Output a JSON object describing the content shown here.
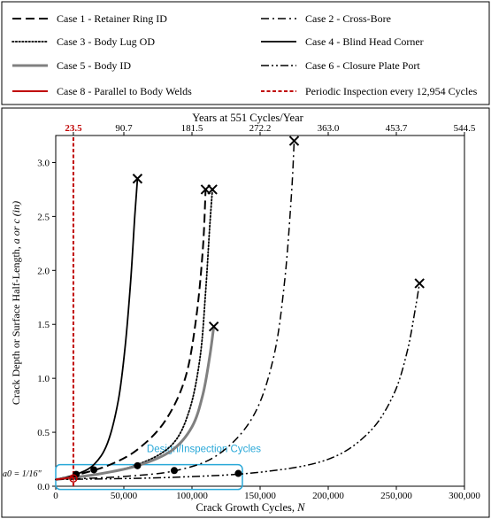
{
  "chart_data": {
    "type": "line",
    "xlabel_main": "Crack Growth Cycles,",
    "xlabel_var": "N",
    "ylabel_main": "Crack Depth or Surface Half-Length,",
    "ylabel_var": "a or c (in)",
    "top_axis_label": "Years at 551 Cycles/Year",
    "xlim": [
      0,
      300000
    ],
    "ylim": [
      0,
      3.25
    ],
    "x_ticks": [
      0,
      50000,
      100000,
      150000,
      200000,
      250000,
      300000
    ],
    "x_tick_labels": [
      "0",
      "50,000",
      "100,000",
      "150,000",
      "200,000",
      "250,000",
      "300,000"
    ],
    "y_ticks": [
      0.0,
      0.5,
      1.0,
      1.5,
      2.0,
      2.5,
      3.0
    ],
    "y_tick_labels": [
      "0.0",
      "0.5",
      "1.0",
      "1.5",
      "2.0",
      "2.5",
      "3.0"
    ],
    "top_ticks_x": [
      12954,
      50000,
      100000,
      150000,
      200000,
      250000,
      300000
    ],
    "top_tick_labels": [
      "23.5",
      "90.7",
      "181.5",
      "272.2",
      "363.0",
      "453.7",
      "544.5"
    ],
    "top_first_label_color": "#c00000",
    "a0_label": "a0 = 1/16\"",
    "a0_value": 0.0625,
    "inspection_interval_cycles": 12954,
    "design_box_label": "Design/Inspection Cycles",
    "design_box_color": "#29a8d8",
    "series": [
      {
        "name": "Case 1 - Retainer Ring ID",
        "dash": "long",
        "color": "#000000",
        "width": 2,
        "x": [
          0,
          20000,
          40000,
          60000,
          80000,
          95000,
          103000,
          108000,
          110000
        ],
        "y": [
          0.0625,
          0.12,
          0.2,
          0.34,
          0.6,
          1.0,
          1.55,
          2.2,
          2.75
        ],
        "end_marker": true,
        "dots": [
          28000
        ]
      },
      {
        "name": "Case 2 - Cross-Bore",
        "dash": "dashdot",
        "color": "#000000",
        "width": 1.5,
        "x": [
          0,
          50000,
          90000,
          120000,
          145000,
          160000,
          168000,
          173000,
          175000
        ],
        "y": [
          0.0625,
          0.09,
          0.15,
          0.3,
          0.65,
          1.2,
          1.9,
          2.7,
          3.2
        ],
        "end_marker": true,
        "dots": [
          87000
        ]
      },
      {
        "name": "Case 3 - Body Lug OD",
        "dash": "dot",
        "color": "#000000",
        "width": 1.8,
        "x": [
          0,
          30000,
          60000,
          85000,
          98000,
          106000,
          110000,
          113000,
          115000
        ],
        "y": [
          0.0625,
          0.11,
          0.2,
          0.38,
          0.7,
          1.2,
          1.8,
          2.4,
          2.75
        ],
        "end_marker": true,
        "dots": []
      },
      {
        "name": "Case 4 - Blind Head Corner",
        "dash": "solid",
        "color": "#000000",
        "width": 1.8,
        "x": [
          0,
          15000,
          28000,
          38000,
          46000,
          51000,
          55000,
          58000,
          60000
        ],
        "y": [
          0.0625,
          0.11,
          0.2,
          0.4,
          0.8,
          1.3,
          1.9,
          2.5,
          2.85
        ],
        "end_marker": true,
        "dots": [
          15000
        ]
      },
      {
        "name": "Case 5 - Body ID",
        "dash": "solid",
        "color": "#808080",
        "width": 3,
        "x": [
          0,
          30000,
          60000,
          85000,
          100000,
          108000,
          113000,
          116000
        ],
        "y": [
          0.0625,
          0.11,
          0.19,
          0.33,
          0.55,
          0.85,
          1.2,
          1.48
        ],
        "end_marker": true,
        "dots": [
          60000
        ]
      },
      {
        "name": "Case 6 - Closure Plate Port",
        "dash": "dashdotdot",
        "color": "#000000",
        "width": 1.5,
        "x": [
          0,
          80000,
          150000,
          200000,
          230000,
          248000,
          258000,
          264000,
          267000
        ],
        "y": [
          0.0625,
          0.08,
          0.13,
          0.25,
          0.5,
          0.85,
          1.25,
          1.65,
          1.88
        ],
        "end_marker": true,
        "dots": [
          134000
        ]
      },
      {
        "name": "Case 8 - Parallel to Body Welds",
        "dash": "solid",
        "color": "#c00000",
        "width": 2,
        "x": [
          0,
          8000,
          12954,
          16000
        ],
        "y": [
          0.0625,
          0.075,
          0.085,
          0.09
        ],
        "end_marker": false,
        "dots": []
      },
      {
        "name": "Periodic Inspection every 12,954 Cycles",
        "dash": "redvert",
        "color": "#c00000",
        "width": 2,
        "x": [
          12954,
          12954
        ],
        "y": [
          0,
          3.25
        ],
        "end_marker": false,
        "dots": []
      }
    ]
  }
}
